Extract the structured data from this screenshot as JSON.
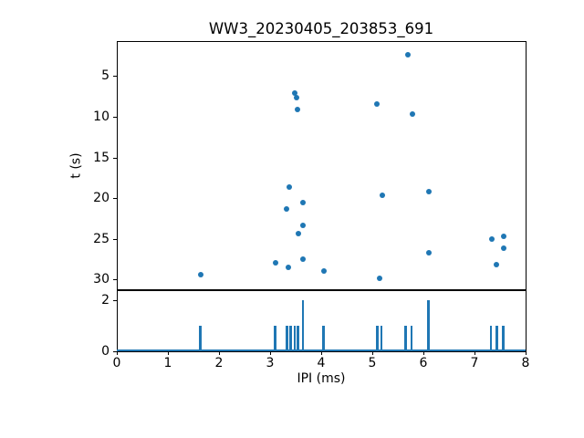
{
  "figure": {
    "title": "WW3_20230405_203853_691",
    "background": "#ffffff",
    "accent_color": "#1f77b4",
    "spine_color": "#000000"
  },
  "chart_data": [
    {
      "type": "scatter",
      "title": "WW3_20230405_203853_691",
      "xlabel": "IPI (ms)",
      "ylabel": "t (s)",
      "xlim": [
        0,
        8
      ],
      "ylim": [
        0.7,
        31.2
      ],
      "y_inverted": true,
      "grid": false,
      "legend": "none",
      "xticks": [
        0,
        1,
        2,
        3,
        4,
        5,
        6,
        7,
        8
      ],
      "yticks": [
        5,
        10,
        15,
        20,
        25,
        30
      ],
      "marker_color": "#1f77b4",
      "points": [
        [
          1.64,
          29.4
        ],
        [
          3.1,
          27.9
        ],
        [
          3.32,
          21.3
        ],
        [
          3.36,
          28.5
        ],
        [
          3.38,
          18.6
        ],
        [
          3.48,
          7.1
        ],
        [
          3.52,
          7.7
        ],
        [
          3.54,
          9.1
        ],
        [
          3.55,
          24.4
        ],
        [
          3.64,
          20.6
        ],
        [
          3.64,
          23.4
        ],
        [
          3.65,
          27.5
        ],
        [
          4.05,
          29.0
        ],
        [
          5.09,
          8.4
        ],
        [
          5.14,
          29.9
        ],
        [
          5.2,
          19.6
        ],
        [
          5.69,
          2.4
        ],
        [
          5.79,
          9.7
        ],
        [
          6.11,
          19.2
        ],
        [
          6.11,
          26.7
        ],
        [
          7.34,
          25.0
        ],
        [
          7.43,
          28.2
        ],
        [
          7.57,
          24.7
        ],
        [
          7.57,
          26.2
        ]
      ]
    },
    {
      "type": "bar",
      "xlabel": "IPI (ms)",
      "xlim": [
        0,
        8
      ],
      "ylim": [
        0,
        2.4
      ],
      "grid": false,
      "legend": "none",
      "yticks": [
        0,
        2
      ],
      "bar_color": "#1f77b4",
      "bars": [
        [
          1.63,
          1
        ],
        [
          3.1,
          1
        ],
        [
          3.33,
          1
        ],
        [
          3.4,
          1
        ],
        [
          3.48,
          1
        ],
        [
          3.54,
          1
        ],
        [
          3.64,
          2
        ],
        [
          4.04,
          1
        ],
        [
          5.1,
          1
        ],
        [
          5.18,
          1
        ],
        [
          5.65,
          1
        ],
        [
          5.77,
          1
        ],
        [
          6.1,
          2
        ],
        [
          7.32,
          1
        ],
        [
          7.44,
          1
        ],
        [
          7.56,
          1
        ]
      ]
    }
  ]
}
